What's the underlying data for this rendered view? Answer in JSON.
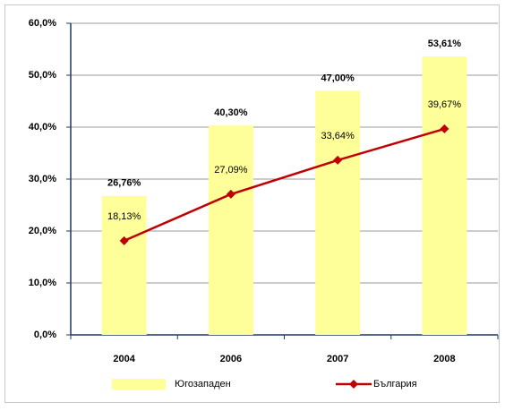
{
  "chart_data": {
    "type": "bar",
    "categories": [
      "2004",
      "2006",
      "2007",
      "2008"
    ],
    "series": [
      {
        "name": "Югозападен",
        "type": "bar",
        "color": "#ffff99",
        "values": [
          26.76,
          40.3,
          47.0,
          53.61
        ],
        "value_labels": [
          "26,76%",
          "40,30%",
          "47,00%",
          "53,61%"
        ]
      },
      {
        "name": "България",
        "type": "line",
        "color": "#c00000",
        "values": [
          18.13,
          27.09,
          33.64,
          39.67
        ],
        "value_labels": [
          "18,13%",
          "27,09%",
          "33,64%",
          "39,67%"
        ]
      }
    ],
    "ylim": [
      0,
      60
    ],
    "yticks": [
      {
        "value": 0,
        "label": "0,0%"
      },
      {
        "value": 10,
        "label": "10,0%"
      },
      {
        "value": 20,
        "label": "20,0%"
      },
      {
        "value": 30,
        "label": "30,0%"
      },
      {
        "value": 40,
        "label": "40,0%"
      },
      {
        "value": 50,
        "label": "50,0%"
      },
      {
        "value": 60,
        "label": "60,0%"
      }
    ],
    "grid": true,
    "legend": "bottom"
  }
}
